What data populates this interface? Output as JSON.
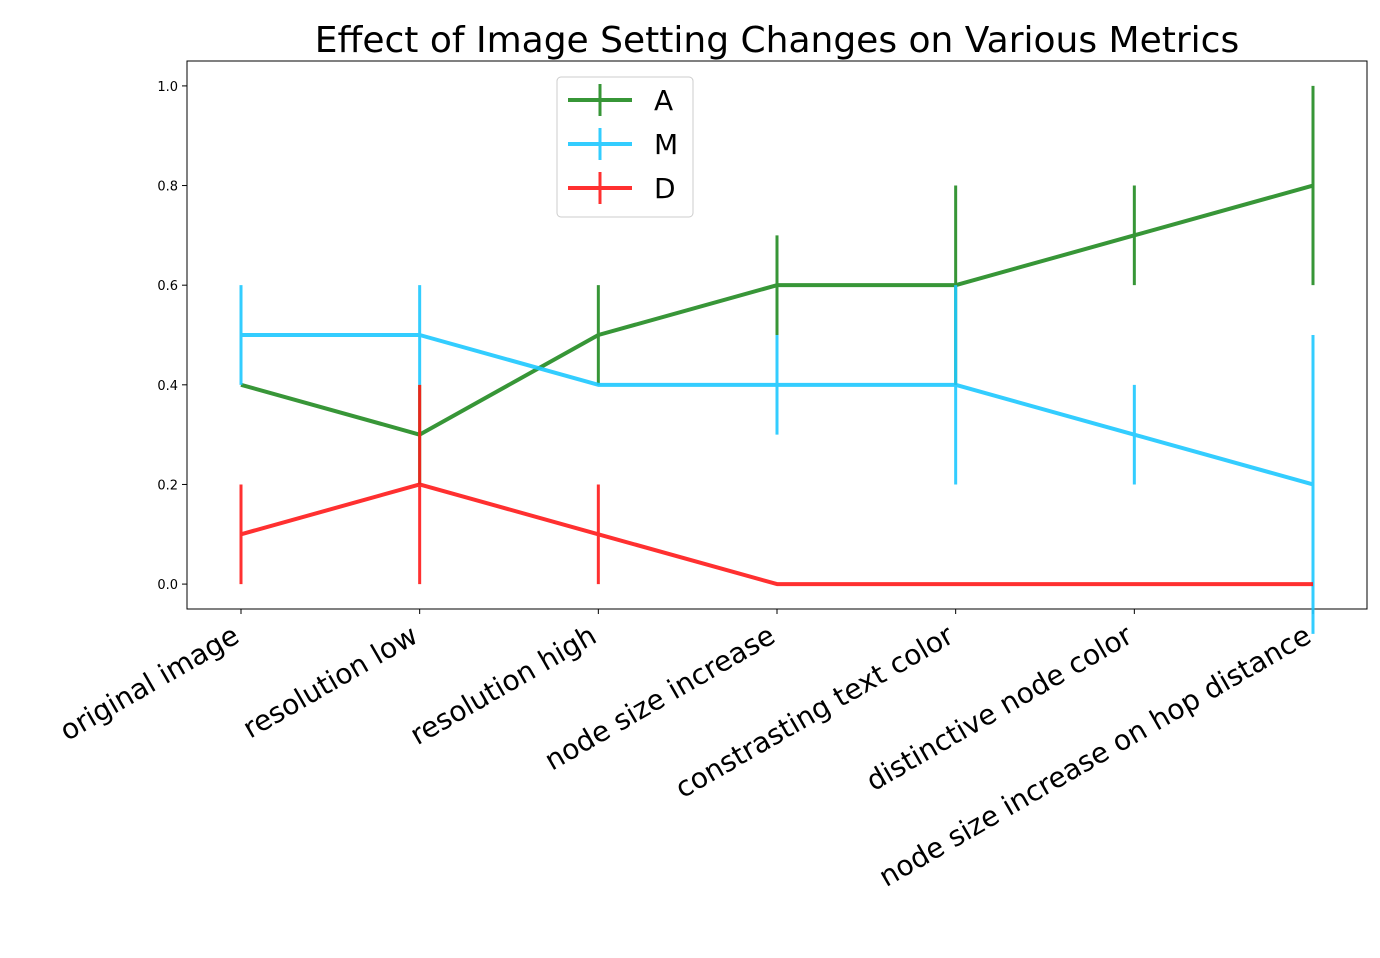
{
  "chart_data": {
    "type": "line",
    "title": "Effect of Image Setting Changes on Various Metrics",
    "xlabel": "",
    "ylabel": "",
    "categories": [
      "original image",
      "resolution low",
      "resolution high",
      "node size increase",
      "constrasting text color",
      "distinctive node color",
      "node size increase on hop distance"
    ],
    "ylim": [
      -0.05,
      1.05
    ],
    "yticks": [
      "0.0",
      "0.2",
      "0.4",
      "0.6",
      "0.8",
      "1.0"
    ],
    "grid": false,
    "legend_position": "top-center",
    "series": [
      {
        "name": "A",
        "color": "#228B22",
        "values": [
          0.4,
          0.3,
          0.5,
          0.6,
          0.6,
          0.7,
          0.8
        ],
        "errors": [
          0.0,
          0.1,
          0.1,
          0.1,
          0.2,
          0.1,
          0.2
        ]
      },
      {
        "name": "M",
        "color": "#1EC8FF",
        "values": [
          0.5,
          0.5,
          0.4,
          0.4,
          0.4,
          0.3,
          0.2
        ],
        "errors": [
          0.1,
          0.1,
          0.0,
          0.1,
          0.2,
          0.1,
          0.3
        ]
      },
      {
        "name": "D",
        "color": "#FF1A1A",
        "values": [
          0.1,
          0.2,
          0.1,
          0.0,
          0.0,
          0.0,
          0.0
        ],
        "errors": [
          0.1,
          0.2,
          0.1,
          0.0,
          0.0,
          0.0,
          0.0
        ]
      }
    ]
  }
}
